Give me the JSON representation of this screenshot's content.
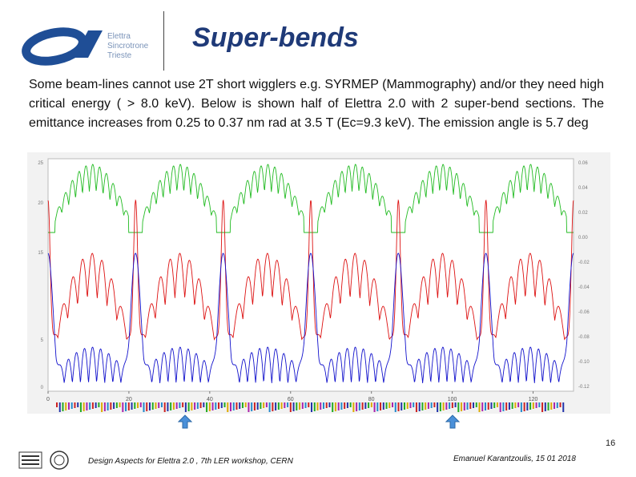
{
  "logo": {
    "line1": "Elettra",
    "line2": "Sincrotrone",
    "line3": "Trieste"
  },
  "title": "Super-bends",
  "body_text": "Some beam-lines cannot use 2T short wigglers e.g. SYRMEP (Mammography) and/or they need high critical energy ( > 8.0 keV). Below is shown half of Elettra 2.0 with 2 super-bend sections. The emittance increases from 0.25 to 0.37 nm rad at 3.5 T (Ec=9.3 keV). The emission angle is 5.7 deg",
  "chart_data": {
    "type": "line",
    "left_axis": {
      "ticks": [
        "0",
        "5",
        "15",
        "20",
        "25"
      ]
    },
    "right_axis": {
      "ticks": [
        "0.06",
        "0.04",
        "0.02",
        "0.00",
        "-0.02",
        "-0.04",
        "-0.06",
        "-0.08",
        "-0.10",
        "-0.12"
      ]
    },
    "x_axis": {
      "ticks": [
        "0",
        "20",
        "40",
        "60",
        "80",
        "100",
        "120"
      ],
      "xlim": [
        0,
        130
      ]
    },
    "series": [
      {
        "color": "#22bb22"
      },
      {
        "color": "#dd1111"
      },
      {
        "color": "#1111cc"
      }
    ],
    "superbend_markers_x": [
      33,
      100
    ]
  },
  "footer": {
    "page_number": "16",
    "left": "Design Aspects for Elettra 2.0 , 7th LER workshop, CERN",
    "right": "Emanuel Karantzoulis, 15 01 2018"
  },
  "colors": {
    "title": "#1f3a78",
    "logo_blue": "#1f4e96",
    "arrow": "#4a90d9"
  }
}
